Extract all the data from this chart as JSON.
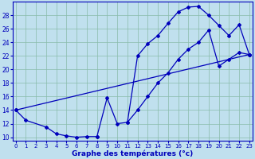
{
  "xlabel": "Graphe des températures (°c)",
  "line_color": "#0000bb",
  "marker": "D",
  "markersize": 2.0,
  "bg_color": "#c0e0ee",
  "grid_color": "#88bbaa",
  "ylim": [
    9.5,
    30
  ],
  "xlim": [
    -0.3,
    23.3
  ],
  "yticks": [
    10,
    12,
    14,
    16,
    18,
    20,
    22,
    24,
    26,
    28
  ],
  "xticks": [
    0,
    1,
    2,
    3,
    4,
    5,
    6,
    7,
    8,
    9,
    10,
    11,
    12,
    13,
    14,
    15,
    16,
    17,
    18,
    19,
    20,
    21,
    22,
    23
  ],
  "curve1_x": [
    0,
    1,
    3,
    4,
    5,
    6,
    7,
    8
  ],
  "curve1_y": [
    14.0,
    12.5,
    11.5,
    10.5,
    10.2,
    10.0,
    10.1,
    10.1
  ],
  "curve2_x": [
    8,
    9,
    10,
    11,
    12,
    13,
    14,
    15,
    16,
    17,
    18,
    19,
    20,
    21,
    22,
    23
  ],
  "curve2_y": [
    10.1,
    15.8,
    12.0,
    12.2,
    22.0,
    23.8,
    25.0,
    26.8,
    28.5,
    29.2,
    29.3,
    28.0,
    26.5,
    25.0,
    26.6,
    22.2
  ],
  "curve3_x": [
    0,
    23
  ],
  "curve3_y": [
    14.0,
    22.2
  ],
  "curve4_x": [
    11,
    12,
    13,
    14,
    15,
    16,
    17,
    18,
    19,
    20,
    21,
    22,
    23
  ],
  "curve4_y": [
    12.2,
    14.0,
    16.0,
    18.0,
    19.5,
    21.5,
    23.0,
    24.0,
    25.8,
    20.5,
    21.5,
    22.5,
    22.2
  ]
}
